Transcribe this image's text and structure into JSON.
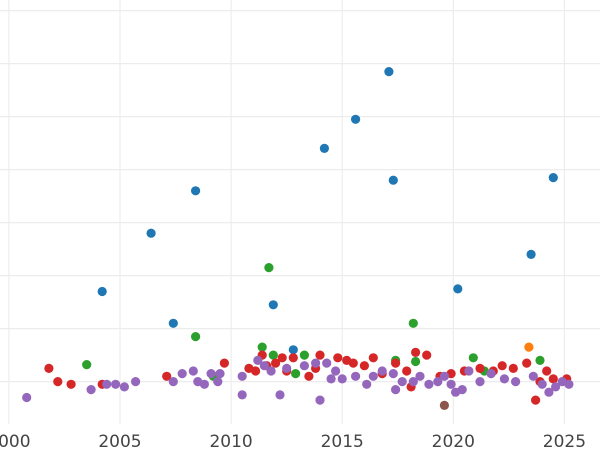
{
  "chart_data": {
    "type": "scatter",
    "title": "",
    "xlabel": "",
    "ylabel": "",
    "xlim": [
      1999.6,
      2026.6
    ],
    "ylim": [
      -0.3,
      7.7
    ],
    "grid": true,
    "x_ticks": [
      2000,
      2005,
      2010,
      2015,
      2020,
      2025
    ],
    "x_tick_labels": [
      "2000",
      "2005",
      "2010",
      "2015",
      "2020",
      "2025"
    ],
    "y_gridlines": [
      0.5,
      1.5,
      2.5,
      3.5,
      4.5,
      5.5,
      6.5,
      7.5
    ],
    "series": [
      {
        "name": "blue",
        "color": "#1f77b4",
        "points": [
          {
            "x": 2004.2,
            "y": 2.2
          },
          {
            "x": 2006.4,
            "y": 3.3
          },
          {
            "x": 2007.4,
            "y": 1.6
          },
          {
            "x": 2008.4,
            "y": 4.1
          },
          {
            "x": 2011.9,
            "y": 1.95
          },
          {
            "x": 2012.8,
            "y": 1.1
          },
          {
            "x": 2014.2,
            "y": 4.9
          },
          {
            "x": 2015.6,
            "y": 5.45
          },
          {
            "x": 2017.1,
            "y": 6.35
          },
          {
            "x": 2017.3,
            "y": 4.3
          },
          {
            "x": 2020.2,
            "y": 2.25
          },
          {
            "x": 2023.5,
            "y": 2.9
          },
          {
            "x": 2024.5,
            "y": 4.35
          }
        ]
      },
      {
        "name": "green",
        "color": "#2ca02c",
        "points": [
          {
            "x": 2003.5,
            "y": 0.82
          },
          {
            "x": 2008.4,
            "y": 1.35
          },
          {
            "x": 2009.2,
            "y": 0.6
          },
          {
            "x": 2011.4,
            "y": 1.15
          },
          {
            "x": 2011.7,
            "y": 2.65
          },
          {
            "x": 2011.9,
            "y": 1.0
          },
          {
            "x": 2012.9,
            "y": 0.65
          },
          {
            "x": 2013.3,
            "y": 1.0
          },
          {
            "x": 2017.4,
            "y": 0.9
          },
          {
            "x": 2018.2,
            "y": 1.6
          },
          {
            "x": 2018.3,
            "y": 0.88
          },
          {
            "x": 2020.9,
            "y": 0.95
          },
          {
            "x": 2021.4,
            "y": 0.7
          },
          {
            "x": 2023.9,
            "y": 0.9
          }
        ]
      },
      {
        "name": "red",
        "color": "#d62728",
        "points": [
          {
            "x": 2001.8,
            "y": 0.75
          },
          {
            "x": 2002.2,
            "y": 0.5
          },
          {
            "x": 2002.8,
            "y": 0.45
          },
          {
            "x": 2004.2,
            "y": 0.45
          },
          {
            "x": 2007.1,
            "y": 0.6
          },
          {
            "x": 2009.7,
            "y": 0.85
          },
          {
            "x": 2010.8,
            "y": 0.75
          },
          {
            "x": 2011.1,
            "y": 0.7
          },
          {
            "x": 2011.4,
            "y": 1.0
          },
          {
            "x": 2011.6,
            "y": 0.8
          },
          {
            "x": 2012.0,
            "y": 0.85
          },
          {
            "x": 2012.3,
            "y": 0.95
          },
          {
            "x": 2012.5,
            "y": 0.7
          },
          {
            "x": 2012.8,
            "y": 0.95
          },
          {
            "x": 2013.5,
            "y": 0.6
          },
          {
            "x": 2013.8,
            "y": 0.75
          },
          {
            "x": 2014.0,
            "y": 1.0
          },
          {
            "x": 2014.8,
            "y": 0.95
          },
          {
            "x": 2015.2,
            "y": 0.9
          },
          {
            "x": 2015.5,
            "y": 0.85
          },
          {
            "x": 2016.0,
            "y": 0.8
          },
          {
            "x": 2016.4,
            "y": 0.95
          },
          {
            "x": 2016.8,
            "y": 0.65
          },
          {
            "x": 2017.4,
            "y": 0.85
          },
          {
            "x": 2017.9,
            "y": 0.7
          },
          {
            "x": 2018.1,
            "y": 0.4
          },
          {
            "x": 2018.3,
            "y": 1.05
          },
          {
            "x": 2018.8,
            "y": 1.0
          },
          {
            "x": 2019.4,
            "y": 0.6
          },
          {
            "x": 2019.9,
            "y": 0.65
          },
          {
            "x": 2020.5,
            "y": 0.7
          },
          {
            "x": 2021.2,
            "y": 0.75
          },
          {
            "x": 2021.8,
            "y": 0.7
          },
          {
            "x": 2022.2,
            "y": 0.8
          },
          {
            "x": 2022.7,
            "y": 0.75
          },
          {
            "x": 2023.3,
            "y": 0.85
          },
          {
            "x": 2023.7,
            "y": 0.15
          },
          {
            "x": 2023.9,
            "y": 0.5
          },
          {
            "x": 2024.2,
            "y": 0.7
          },
          {
            "x": 2024.5,
            "y": 0.55
          },
          {
            "x": 2025.1,
            "y": 0.55
          }
        ]
      },
      {
        "name": "purple",
        "color": "#9467bd",
        "points": [
          {
            "x": 2000.8,
            "y": 0.2
          },
          {
            "x": 2003.7,
            "y": 0.35
          },
          {
            "x": 2004.4,
            "y": 0.45
          },
          {
            "x": 2004.8,
            "y": 0.45
          },
          {
            "x": 2005.2,
            "y": 0.4
          },
          {
            "x": 2005.7,
            "y": 0.5
          },
          {
            "x": 2007.4,
            "y": 0.5
          },
          {
            "x": 2007.8,
            "y": 0.65
          },
          {
            "x": 2008.3,
            "y": 0.7
          },
          {
            "x": 2008.5,
            "y": 0.5
          },
          {
            "x": 2008.8,
            "y": 0.45
          },
          {
            "x": 2009.1,
            "y": 0.65
          },
          {
            "x": 2009.4,
            "y": 0.5
          },
          {
            "x": 2009.5,
            "y": 0.65
          },
          {
            "x": 2010.5,
            "y": 0.6
          },
          {
            "x": 2010.5,
            "y": 0.25
          },
          {
            "x": 2011.2,
            "y": 0.9
          },
          {
            "x": 2011.5,
            "y": 0.8
          },
          {
            "x": 2011.8,
            "y": 0.7
          },
          {
            "x": 2012.2,
            "y": 0.25
          },
          {
            "x": 2012.5,
            "y": 0.75
          },
          {
            "x": 2013.3,
            "y": 0.8
          },
          {
            "x": 2013.8,
            "y": 0.85
          },
          {
            "x": 2014.0,
            "y": 0.15
          },
          {
            "x": 2014.3,
            "y": 0.85
          },
          {
            "x": 2014.5,
            "y": 0.55
          },
          {
            "x": 2014.7,
            "y": 0.7
          },
          {
            "x": 2015.0,
            "y": 0.55
          },
          {
            "x": 2015.6,
            "y": 0.6
          },
          {
            "x": 2016.1,
            "y": 0.45
          },
          {
            "x": 2016.4,
            "y": 0.6
          },
          {
            "x": 2016.8,
            "y": 0.7
          },
          {
            "x": 2017.3,
            "y": 0.65
          },
          {
            "x": 2017.4,
            "y": 0.35
          },
          {
            "x": 2017.7,
            "y": 0.5
          },
          {
            "x": 2018.2,
            "y": 0.5
          },
          {
            "x": 2018.5,
            "y": 0.6
          },
          {
            "x": 2018.9,
            "y": 0.45
          },
          {
            "x": 2019.3,
            "y": 0.5
          },
          {
            "x": 2019.6,
            "y": 0.6
          },
          {
            "x": 2019.9,
            "y": 0.45
          },
          {
            "x": 2020.1,
            "y": 0.3
          },
          {
            "x": 2020.4,
            "y": 0.35
          },
          {
            "x": 2020.7,
            "y": 0.7
          },
          {
            "x": 2021.2,
            "y": 0.5
          },
          {
            "x": 2021.7,
            "y": 0.65
          },
          {
            "x": 2022.3,
            "y": 0.55
          },
          {
            "x": 2022.8,
            "y": 0.5
          },
          {
            "x": 2023.6,
            "y": 0.6
          },
          {
            "x": 2024.0,
            "y": 0.45
          },
          {
            "x": 2024.3,
            "y": 0.3
          },
          {
            "x": 2024.6,
            "y": 0.4
          },
          {
            "x": 2024.9,
            "y": 0.5
          },
          {
            "x": 2025.2,
            "y": 0.45
          }
        ]
      },
      {
        "name": "orange",
        "color": "#ff7f0e",
        "points": [
          {
            "x": 2023.4,
            "y": 1.15
          }
        ]
      },
      {
        "name": "brown",
        "color": "#8c564b",
        "points": [
          {
            "x": 2019.6,
            "y": 0.05
          }
        ]
      }
    ]
  }
}
